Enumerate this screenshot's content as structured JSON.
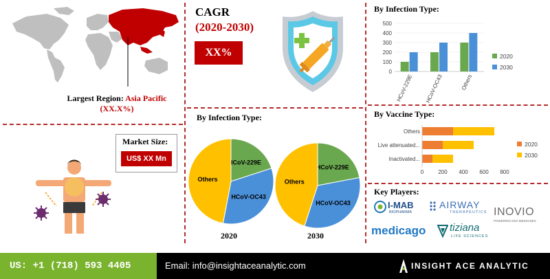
{
  "region": {
    "label_prefix": "Largest Region: ",
    "label_highlight": "Asia Pacific (XX.X%)"
  },
  "cagr": {
    "title": "CAGR",
    "years": "(2020-2030)",
    "value": "XX%"
  },
  "market": {
    "label": "Market Size:",
    "value": "US$ XX Mn"
  },
  "pies": {
    "title": "By Infection Type:",
    "items": [
      {
        "year": "2020",
        "slices": [
          {
            "label": "HCoV-229E",
            "value": 20,
            "color": "#6aa84f"
          },
          {
            "label": "HCoV-OC43",
            "value": 33,
            "color": "#4a90d9"
          },
          {
            "label": "Others",
            "value": 47,
            "color": "#ffc000"
          }
        ]
      },
      {
        "year": "2030",
        "slices": [
          {
            "label": "HCoV-229E",
            "value": 22,
            "color": "#6aa84f"
          },
          {
            "label": "HCoV-OC43",
            "value": 33,
            "color": "#4a90d9"
          },
          {
            "label": "Others",
            "value": 45,
            "color": "#ffc000"
          }
        ]
      }
    ]
  },
  "chart_data": [
    {
      "type": "bar",
      "title": "By Infection Type:",
      "categories": [
        "HCoV-229E",
        "HCoV-OC43",
        "Others"
      ],
      "series": [
        {
          "name": "2020",
          "values": [
            100,
            200,
            300
          ],
          "color": "#6aa84f"
        },
        {
          "name": "2030",
          "values": [
            200,
            300,
            400
          ],
          "color": "#4a90d9"
        }
      ],
      "ylim": [
        0,
        500
      ],
      "yticks": [
        "0",
        "100",
        "200",
        "300",
        "400",
        "500"
      ],
      "legend": "right"
    },
    {
      "type": "bar",
      "orientation": "horizontal-stacked",
      "title": "By Vaccine Type:",
      "categories": [
        "Others",
        "Live attenuated...",
        "Inactivated..."
      ],
      "series": [
        {
          "name": "2020",
          "values": [
            300,
            200,
            100
          ],
          "color": "#ed7d31"
        },
        {
          "name": "2030",
          "values": [
            400,
            300,
            200
          ],
          "color": "#ffc000"
        }
      ],
      "xlim": [
        0,
        800
      ],
      "xticks": [
        "0",
        "200",
        "400",
        "600",
        "800"
      ],
      "legend": "right"
    }
  ],
  "key_players": {
    "title": "Key Players:",
    "logos": [
      {
        "main": "I-MAB",
        "sub": "BIOPHARMA"
      },
      {
        "main": "AIRWAY",
        "sub": "THERAPEUTICS"
      },
      {
        "main": "INOVIO",
        "sub": "POWERING DNA MEDICINES"
      },
      {
        "main": "medicago",
        "sub": ""
      },
      {
        "main": "tiziana",
        "sub": "LIFE SCIENCES"
      }
    ]
  },
  "footer": {
    "phone": "US: +1 (718) 593 4405",
    "email": "Email: info@insightaceanalytic.com",
    "brand": "INSIGHT ACE ANALYTIC"
  },
  "colors": {
    "accent_red": "#c00000",
    "footer_green": "#7ab32e"
  }
}
